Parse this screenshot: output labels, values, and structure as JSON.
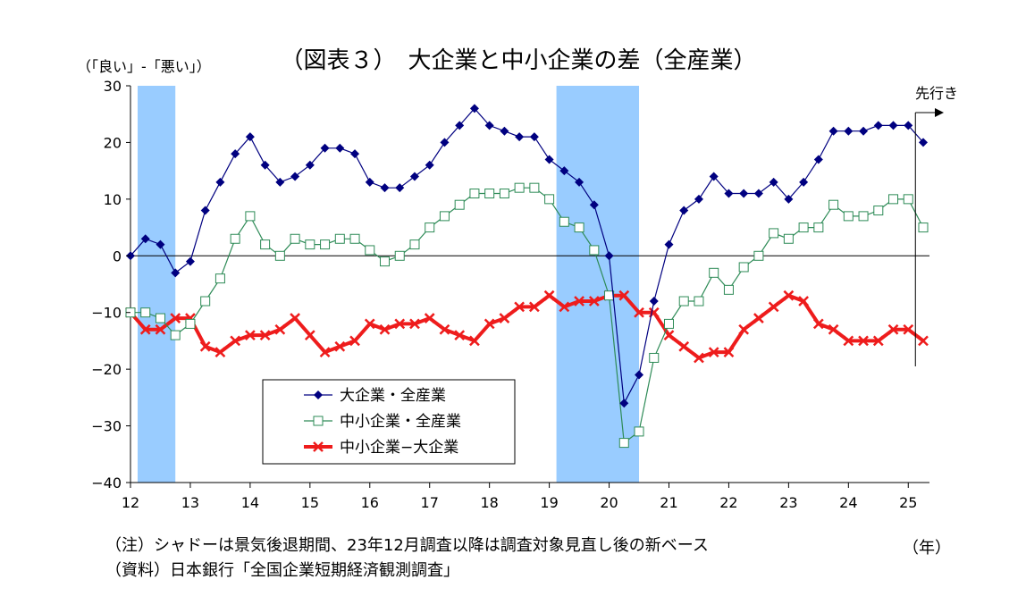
{
  "chart_data": {
    "type": "line",
    "title": "（図表３）　大企業と中小企業の差（全産業）",
    "ylabel": "（「良い」-「悪い」）",
    "xlabel": "（年）",
    "ylim": [
      -40,
      30
    ],
    "yticks": [
      "30",
      "20",
      "10",
      "0",
      "−10",
      "−20",
      "−30",
      "−40"
    ],
    "year_labels": [
      "12",
      "13",
      "14",
      "15",
      "16",
      "17",
      "18",
      "19",
      "20",
      "21",
      "22",
      "23",
      "24",
      "25"
    ],
    "forecast_label": "先行き",
    "legend_position": "bottom-left",
    "shaded_periods": [
      [
        0,
        3
      ],
      [
        28,
        34
      ]
    ],
    "series": [
      {
        "name": "大企業・全産業",
        "color": "#000080",
        "marker": "diamond",
        "values": [
          0,
          3,
          2,
          -3,
          -1,
          8,
          13,
          18,
          21,
          16,
          13,
          14,
          16,
          19,
          19,
          18,
          13,
          12,
          12,
          14,
          16,
          20,
          23,
          26,
          23,
          22,
          21,
          21,
          17,
          15,
          13,
          9,
          0,
          -26,
          -21,
          -8,
          2,
          8,
          10,
          14,
          11,
          11,
          11,
          13,
          10,
          13,
          17,
          22,
          22,
          22,
          23,
          23,
          23,
          20
        ]
      },
      {
        "name": "中小企業・全産業",
        "color": "#2e8b57",
        "marker": "square-open",
        "values": [
          -10,
          -10,
          -11,
          -14,
          -12,
          -8,
          -4,
          3,
          7,
          2,
          0,
          3,
          2,
          2,
          3,
          3,
          1,
          -1,
          0,
          2,
          5,
          7,
          9,
          11,
          11,
          11,
          12,
          12,
          10,
          6,
          5,
          1,
          -7,
          -33,
          -31,
          -18,
          -12,
          -8,
          -8,
          -3,
          -6,
          -2,
          0,
          4,
          3,
          5,
          5,
          9,
          7,
          7,
          8,
          10,
          10,
          5
        ]
      },
      {
        "name": "中小企業−大企業",
        "color": "#ee1c1c",
        "marker": "cross",
        "values": [
          -10,
          -13,
          -13,
          -11,
          -11,
          -16,
          -17,
          -15,
          -14,
          -14,
          -13,
          -11,
          -14,
          -17,
          -16,
          -15,
          -12,
          -13,
          -12,
          -12,
          -11,
          -13,
          -14,
          -15,
          -12,
          -11,
          -9,
          -9,
          -7,
          -9,
          -8,
          -8,
          -7,
          -7,
          -10,
          -10,
          -14,
          -16,
          -18,
          -17,
          -17,
          -13,
          -11,
          -9,
          -7,
          -8,
          -12,
          -13,
          -15,
          -15,
          -15,
          -13,
          -13,
          -15
        ]
      }
    ]
  },
  "notes": {
    "line1": "（注）シャドーは景気後退期間、23年12月調査以降は調査対象見直し後の新ベース",
    "line2": "（資料）日本銀行「全国企業短期経済観測調査」"
  }
}
